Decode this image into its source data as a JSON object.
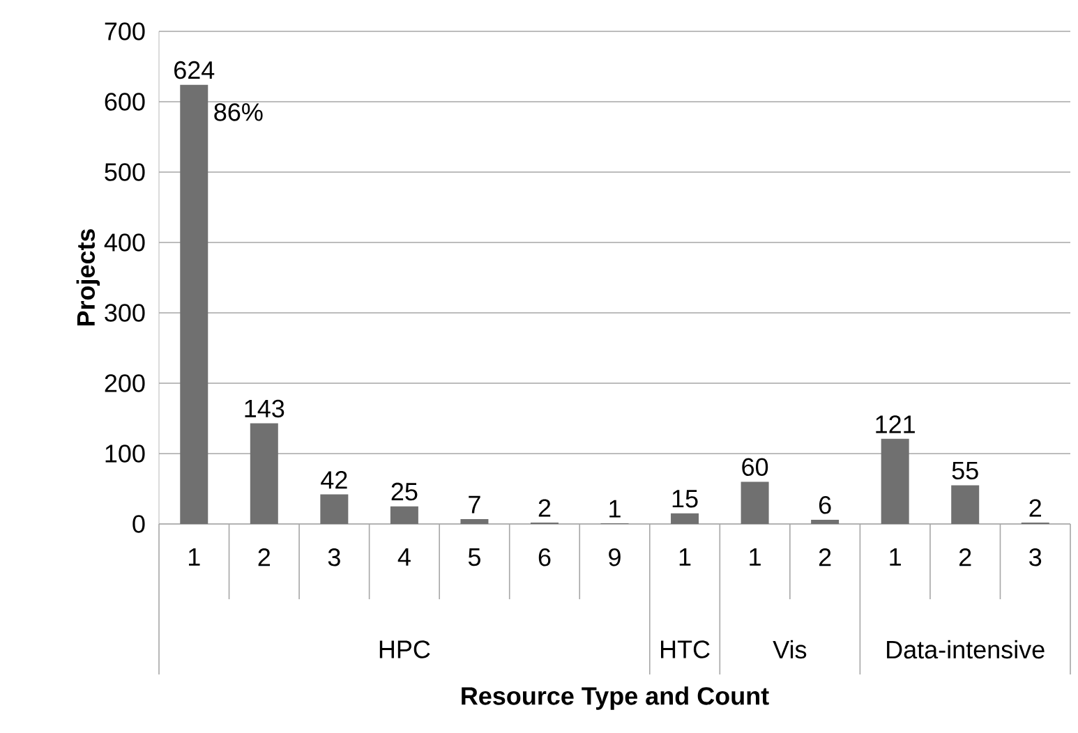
{
  "chart_data": {
    "type": "bar",
    "xlabel": "Resource Type and Count",
    "ylabel": "Projects",
    "categories": [
      "1",
      "2",
      "3",
      "4",
      "5",
      "6",
      "9",
      "1",
      "1",
      "2",
      "1",
      "2",
      "3"
    ],
    "values": [
      624,
      143,
      42,
      25,
      7,
      2,
      1,
      15,
      60,
      6,
      121,
      55,
      2
    ],
    "color": "#707070",
    "ylim": [
      0,
      700
    ],
    "yticks": [
      0,
      100,
      200,
      300,
      400,
      500,
      600,
      700
    ],
    "grid": "y",
    "data_labels": true,
    "annotations": [
      "HPC",
      "HTC",
      "Vis",
      "Data-intensive",
      "86%"
    ]
  }
}
